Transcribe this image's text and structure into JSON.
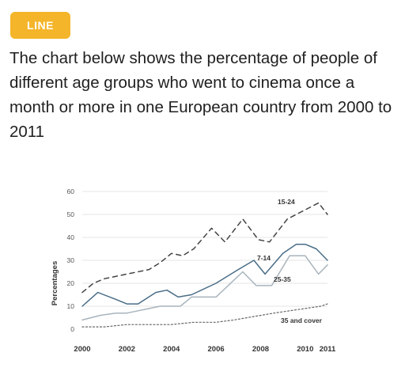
{
  "badge": {
    "label": "LINE",
    "color": "#f4b52a"
  },
  "description": "The chart below shows the percentage of people of different age groups who went to cinema once a month or more in one European country from 2000 to 2011",
  "chart_data": {
    "type": "line",
    "title": "",
    "xlabel": "",
    "ylabel": "Percentages",
    "ylim": [
      0,
      60
    ],
    "yticks": [
      "0",
      "10",
      "20",
      "30",
      "40",
      "50",
      "60"
    ],
    "xticks": [
      "2000",
      "2002",
      "2004",
      "2006",
      "2008",
      "2010",
      "2011"
    ],
    "grid": true,
    "series": [
      {
        "name": "15-24",
        "style": "dashed",
        "color": "#444444",
        "x": [
          2000,
          2000.5,
          2001,
          2002,
          2003,
          2003.5,
          2004,
          2004.5,
          2005,
          2005.8,
          2006.4,
          2007.2,
          2007.9,
          2008.4,
          2009.2,
          2009.6,
          2010,
          2010.6,
          2011
        ],
        "y": [
          16,
          20,
          22,
          24,
          26,
          29,
          33,
          32,
          35,
          44,
          38,
          48,
          39,
          38,
          48,
          50,
          52,
          55,
          50
        ]
      },
      {
        "name": "7-14",
        "style": "solid",
        "color": "#4a6d87",
        "x": [
          2000,
          2000.7,
          2001.5,
          2002,
          2002.5,
          2003.3,
          2003.8,
          2004.3,
          2004.9,
          2006,
          2007,
          2007.7,
          2008.2,
          2009,
          2009.6,
          2010,
          2010.5,
          2011
        ],
        "y": [
          10,
          16,
          13,
          11,
          11,
          16,
          17,
          14,
          15,
          20,
          26,
          30,
          24,
          33,
          37,
          37,
          35,
          30
        ]
      },
      {
        "name": "25-35",
        "style": "solid",
        "color": "#a8b4bc",
        "x": [
          2000,
          2000.8,
          2001.5,
          2002,
          2002.5,
          2003,
          2003.5,
          2004,
          2004.4,
          2004.9,
          2006,
          2007.2,
          2007.8,
          2008.5,
          2009.3,
          2010,
          2010.6,
          2011
        ],
        "y": [
          4,
          6,
          7,
          7,
          8,
          9,
          10,
          10,
          10,
          14,
          14,
          25,
          19,
          19,
          32,
          32,
          24,
          28
        ]
      },
      {
        "name": "35 and cover",
        "style": "dotted",
        "color": "#666666",
        "x": [
          2000,
          2001,
          2002,
          2003,
          2004,
          2005,
          2006,
          2006.8,
          2007.4,
          2008,
          2008.6,
          2009.3,
          2010,
          2010.7,
          2011
        ],
        "y": [
          1,
          1,
          2,
          2,
          2,
          3,
          3,
          4,
          5,
          6,
          7,
          8,
          9,
          10,
          11
        ]
      }
    ]
  }
}
